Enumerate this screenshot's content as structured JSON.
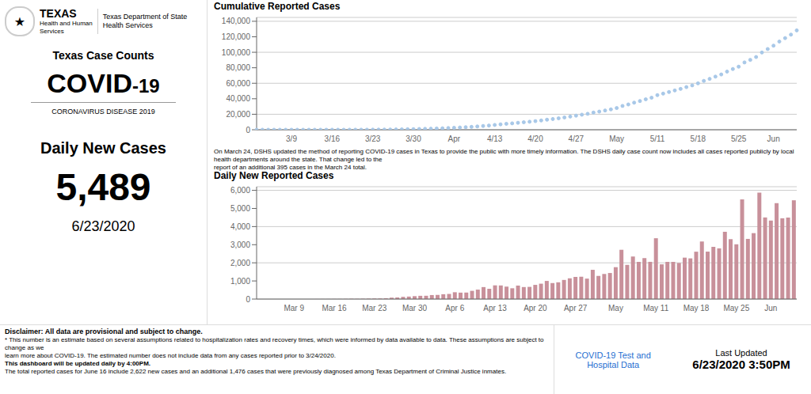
{
  "chart_data": [
    {
      "type": "scatter",
      "title": "Cumulative Reported Cases",
      "categories": [
        null,
        null,
        null,
        null,
        null,
        null,
        "3/9",
        null,
        null,
        null,
        null,
        null,
        null,
        "3/16",
        null,
        null,
        null,
        null,
        null,
        null,
        "3/23",
        null,
        null,
        null,
        null,
        null,
        null,
        "3/30",
        null,
        null,
        null,
        null,
        null,
        null,
        "Apr",
        null,
        null,
        null,
        null,
        null,
        null,
        "4/13",
        null,
        null,
        null,
        null,
        null,
        null,
        "4/20",
        null,
        null,
        null,
        null,
        null,
        null,
        "4/27",
        null,
        null,
        null,
        null,
        null,
        null,
        "May",
        null,
        null,
        null,
        null,
        null,
        null,
        "5/11",
        null,
        null,
        null,
        null,
        null,
        null,
        "5/18",
        null,
        null,
        null,
        null,
        null,
        null,
        "5/25",
        null,
        null,
        null,
        null,
        null,
        "Jun",
        null,
        null,
        null,
        null
      ],
      "values": [
        1,
        2,
        2,
        3,
        3,
        3,
        3,
        4,
        4,
        5,
        7,
        10,
        15,
        21,
        28,
        38,
        54,
        67,
        85,
        110,
        143,
        178,
        226,
        304,
        394,
        516,
        653,
        813,
        993,
        1175,
        1396,
        1625,
        1892,
        2175,
        2552,
        2907,
        3266,
        3721,
        4243,
        4904,
        5472,
        6228,
        6979,
        7666,
        8262,
        9006,
        9669,
        10342,
        11125,
        11974,
        12975,
        13858,
        14783,
        15838,
        16983,
        18205,
        19438,
        20566,
        22180,
        23458,
        24843,
        26281,
        28041,
        30761,
        32648,
        34996,
        37049,
        39309,
        41363,
        44720,
        46636,
        48689,
        50742,
        52734,
        55020,
        57265,
        59879,
        63056,
        65674,
        68555,
        71353,
        75066,
        78372,
        81394,
        86894,
        90215,
        93853,
        99697,
        104203,
        108535,
        113827,
        118285,
        122783,
        128234
      ],
      "color": "#a8c8e8",
      "ylim": [
        0,
        145000
      ],
      "yticks": [
        0,
        {
          "value": 20000,
          "label": "20,000"
        },
        {
          "value": 40000,
          "label": "40,000"
        },
        {
          "value": 60000,
          "label": "60,000"
        },
        {
          "value": 80000,
          "label": "80,000"
        },
        {
          "value": 100000,
          "label": "100,000"
        },
        {
          "value": 120000,
          "label": "120,000"
        },
        {
          "value": 140000,
          "label": "140,000"
        }
      ],
      "grid": true,
      "annotations": [
        "★",
        "TEXAS",
        "Health and Human\nServices",
        "Texas Department of State\nHealth Services",
        "Texas Case Counts",
        "COVID",
        "-19",
        "CORONAVIRUS DISEASE 2019",
        "Daily New Cases",
        "5,489",
        "6/23/2020",
        "On March 24, DSHS updated the method of reporting COVID-19 cases in Texas to provide the public with more timely information. The DSHS daily case count now includes all cases reported publicly by local health departments around the state. That change led to the",
        "report of an additional 395 cases in the March 24 total."
      ]
    },
    {
      "type": "bar",
      "title": "Daily New Reported Cases",
      "categories": [
        null,
        null,
        null,
        null,
        null,
        null,
        "Mar 9",
        null,
        null,
        null,
        null,
        null,
        null,
        "Mar 16",
        null,
        null,
        null,
        null,
        null,
        null,
        "Mar 23",
        null,
        null,
        null,
        null,
        null,
        null,
        "Mar 30",
        null,
        null,
        null,
        null,
        null,
        null,
        "Apr 6",
        null,
        null,
        null,
        null,
        null,
        null,
        "Apr 13",
        null,
        null,
        null,
        null,
        null,
        null,
        "Apr 20",
        null,
        null,
        null,
        null,
        null,
        null,
        "Apr 27",
        null,
        null,
        null,
        null,
        null,
        null,
        "May",
        null,
        null,
        null,
        null,
        null,
        null,
        "May 11",
        null,
        null,
        null,
        null,
        null,
        null,
        "May 18",
        null,
        null,
        null,
        null,
        null,
        null,
        "May 25",
        null,
        null,
        null,
        null,
        null,
        "Jun",
        null,
        null,
        null,
        null
      ],
      "values": [
        1,
        1,
        0,
        1,
        0,
        0,
        0,
        1,
        0,
        1,
        2,
        3,
        5,
        6,
        7,
        10,
        16,
        13,
        18,
        25,
        33,
        35,
        48,
        78,
        90,
        122,
        137,
        160,
        180,
        182,
        221,
        229,
        267,
        283,
        377,
        355,
        359,
        455,
        522,
        661,
        568,
        756,
        751,
        687,
        596,
        744,
        663,
        673,
        783,
        849,
        1001,
        883,
        925,
        1055,
        1145,
        1222,
        1233,
        1128,
        1614,
        1278,
        1385,
        1438,
        1760,
        2720,
        1887,
        2348,
        2053,
        2260,
        2054,
        3357,
        1916,
        2053,
        2053,
        1992,
        2286,
        2245,
        2614,
        3177,
        2618,
        2881,
        2798,
        3713,
        3306,
        3022,
        5500,
        3321,
        3638,
        5874,
        4504,
        4332,
        5293,
        4458,
        4498,
        5451
      ],
      "color": "#c8909a",
      "ylim": [
        0,
        6200
      ],
      "yticks": [
        0,
        {
          "value": 1000,
          "label": "1,000"
        },
        {
          "value": 2000,
          "label": "2,000"
        },
        {
          "value": 3000,
          "label": "3,000"
        },
        {
          "value": 4000,
          "label": "4,000"
        },
        {
          "value": 5000,
          "label": "5,000"
        },
        {
          "value": 6000,
          "label": "6,000"
        }
      ],
      "grid": true,
      "annotations": [
        "Disclaimer: All data are provisional and subject to change.",
        "* This number is an estimate based on several assumptions related to hospitalization rates and recovery times, which were informed by data available to data. These assumptions are subject to change as we",
        "learn more about COVID-19. The estimated number does not include data from any cases reported prior to 3/24/2020.",
        "This dashboard will be updated daily by 4:00PM.",
        "The total reported cases for June 16 include 2,622 new cases and an additional 1,476 cases that were previously diagnosed among Texas Department of Criminal Justice inmates.",
        "COVID-19 Test and\nHospital Data",
        "Last Updated",
        "6/23/2020 3:50PM"
      ]
    }
  ]
}
